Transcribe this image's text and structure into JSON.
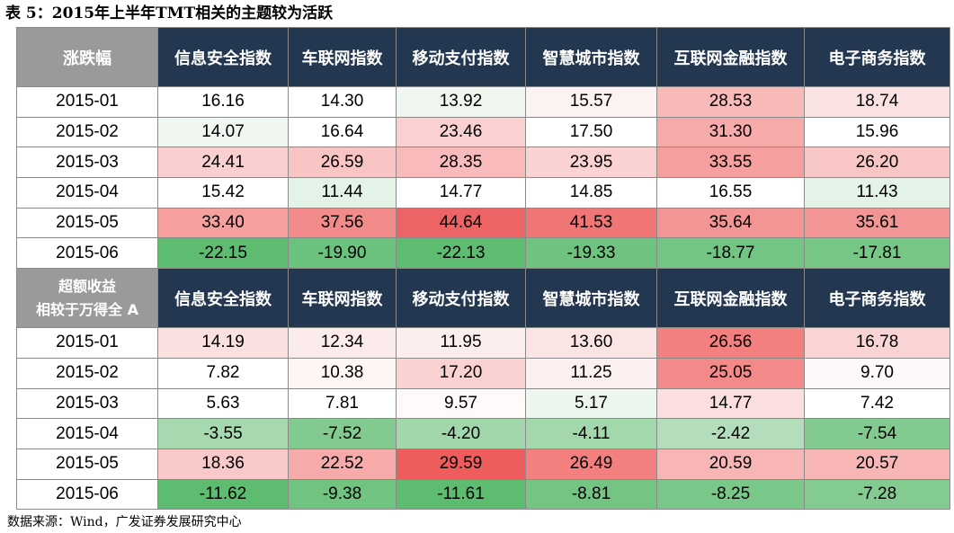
{
  "title": "表 5：2015年上半年TMT相关的主题较为活跃",
  "columns": [
    "信息安全指数",
    "车联网指数",
    "移动支付指数",
    "智慧城市指数",
    "互联网金融指数",
    "电子商务指数"
  ],
  "section1": {
    "header": "涨跌幅",
    "rows": [
      {
        "month": "2015-01",
        "values": [
          "16.16",
          "14.30",
          "13.92",
          "15.57",
          "28.53",
          "18.74"
        ],
        "colors": [
          "#ffffff",
          "#ffffff",
          "#f0f7f1",
          "#fdf2f2",
          "#f8b9b9",
          "#fbe2e2"
        ]
      },
      {
        "month": "2015-02",
        "values": [
          "14.07",
          "16.64",
          "23.46",
          "17.50",
          "31.30",
          "15.96"
        ],
        "colors": [
          "#f0f7f1",
          "#ffffff",
          "#fad0d0",
          "#ffffff",
          "#f7aaaa",
          "#ffffff"
        ]
      },
      {
        "month": "2015-03",
        "values": [
          "24.41",
          "26.59",
          "28.35",
          "23.95",
          "33.55",
          "26.20"
        ],
        "colors": [
          "#facfcf",
          "#f9c4c4",
          "#f8baba",
          "#fad2d2",
          "#f69f9f",
          "#f9c6c6"
        ]
      },
      {
        "month": "2015-04",
        "values": [
          "15.42",
          "11.44",
          "14.77",
          "14.85",
          "16.55",
          "11.43"
        ],
        "colors": [
          "#ffffff",
          "#e4f3e7",
          "#ffffff",
          "#ffffff",
          "#ffffff",
          "#e4f3e7"
        ]
      },
      {
        "month": "2015-05",
        "values": [
          "33.40",
          "37.56",
          "44.64",
          "41.53",
          "35.64",
          "35.61"
        ],
        "colors": [
          "#f69f9f",
          "#f38b8b",
          "#ee6464",
          "#f07575",
          "#f49595",
          "#f49595"
        ]
      },
      {
        "month": "2015-06",
        "values": [
          "-22.15",
          "-19.90",
          "-22.13",
          "-19.33",
          "-18.77",
          "-17.81"
        ],
        "colors": [
          "#5ebc70",
          "#6bc27c",
          "#5ebc70",
          "#6ec37e",
          "#72c582",
          "#77c786"
        ]
      }
    ]
  },
  "section2": {
    "header_line1": "超额收益",
    "header_line2": "相较于万得全 A",
    "rows": [
      {
        "month": "2015-01",
        "values": [
          "14.19",
          "12.34",
          "11.95",
          "13.60",
          "26.56",
          "16.78"
        ],
        "colors": [
          "#fbe0e0",
          "#fcebeb",
          "#fdeeee",
          "#fbe4e4",
          "#f47f7f",
          "#fad4d4"
        ]
      },
      {
        "month": "2015-02",
        "values": [
          "7.82",
          "10.38",
          "17.20",
          "11.25",
          "25.05",
          "9.70"
        ],
        "colors": [
          "#ffffff",
          "#fef5f5",
          "#fad2d2",
          "#fdf0f0",
          "#f48989",
          "#fff8f8"
        ]
      },
      {
        "month": "2015-03",
        "values": [
          "5.63",
          "7.81",
          "9.57",
          "5.17",
          "14.77",
          "7.42"
        ],
        "colors": [
          "#ffffff",
          "#ffffff",
          "#fff9f9",
          "#ecf6ee",
          "#fbdede",
          "#ffffff"
        ]
      },
      {
        "month": "2015-04",
        "values": [
          "-3.55",
          "-7.52",
          "-4.20",
          "-4.11",
          "-2.42",
          "-7.54"
        ],
        "colors": [
          "#a7d9b0",
          "#82ca90",
          "#a2d7ab",
          "#a3d7ac",
          "#b3ddbb",
          "#82ca90"
        ]
      },
      {
        "month": "2015-05",
        "values": [
          "18.36",
          "22.52",
          "29.59",
          "26.49",
          "20.59",
          "20.57"
        ],
        "colors": [
          "#f9c8c8",
          "#f7aaaa",
          "#ee5c5c",
          "#f47f7f",
          "#f8b5b5",
          "#f8b5b5"
        ]
      },
      {
        "month": "2015-06",
        "values": [
          "-11.62",
          "-9.38",
          "-11.61",
          "-8.81",
          "-8.25",
          "-7.28"
        ],
        "colors": [
          "#5ebc70",
          "#70c480",
          "#5ebc70",
          "#74c584",
          "#79c889",
          "#83cb91"
        ]
      }
    ]
  },
  "source": "数据来源：Wind，广发证券发展研究中心"
}
